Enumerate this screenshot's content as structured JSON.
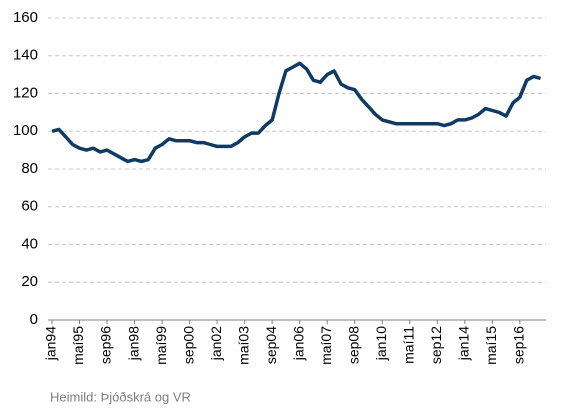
{
  "chart_data": {
    "type": "line",
    "categories": [
      "jan94",
      null,
      null,
      null,
      "maí95",
      null,
      null,
      null,
      "sep96",
      null,
      null,
      null,
      "jan98",
      null,
      null,
      null,
      "maí99",
      null,
      null,
      null,
      "sep00",
      null,
      null,
      null,
      "jan02",
      null,
      null,
      null,
      "maí03",
      null,
      null,
      null,
      "sep04",
      null,
      null,
      null,
      "jan06",
      null,
      null,
      null,
      "maí07",
      null,
      null,
      null,
      "sep08",
      null,
      null,
      null,
      "jan10",
      null,
      null,
      null,
      "maí11",
      null,
      null,
      null,
      "sep12",
      null,
      null,
      null,
      "jan14",
      null,
      null,
      null,
      "maí15",
      null,
      null,
      null,
      "sep16",
      null,
      null,
      null
    ],
    "series": [
      {
        "color": "#0f3b63",
        "values": [
          100,
          101,
          97,
          93,
          91,
          90,
          91,
          89,
          90,
          88,
          86,
          84,
          85,
          84,
          85,
          91,
          93,
          96,
          95,
          95,
          95,
          94,
          94,
          93,
          92,
          92,
          92,
          94,
          97,
          99,
          99,
          103,
          106,
          120,
          132,
          134,
          136,
          133,
          127,
          126,
          130,
          132,
          125,
          123,
          122,
          117,
          113,
          109,
          106,
          105,
          104,
          104,
          104,
          104,
          104,
          104,
          104,
          103,
          104,
          106,
          106,
          107,
          109,
          112,
          111,
          110,
          108,
          115,
          118,
          127,
          129,
          128
        ]
      }
    ],
    "ylim": [
      0,
      160
    ],
    "yticks": [
      0,
      20,
      40,
      60,
      80,
      100,
      120,
      140,
      160
    ],
    "grid": true,
    "source": "Heimild: Þjóðskrá og VR"
  }
}
